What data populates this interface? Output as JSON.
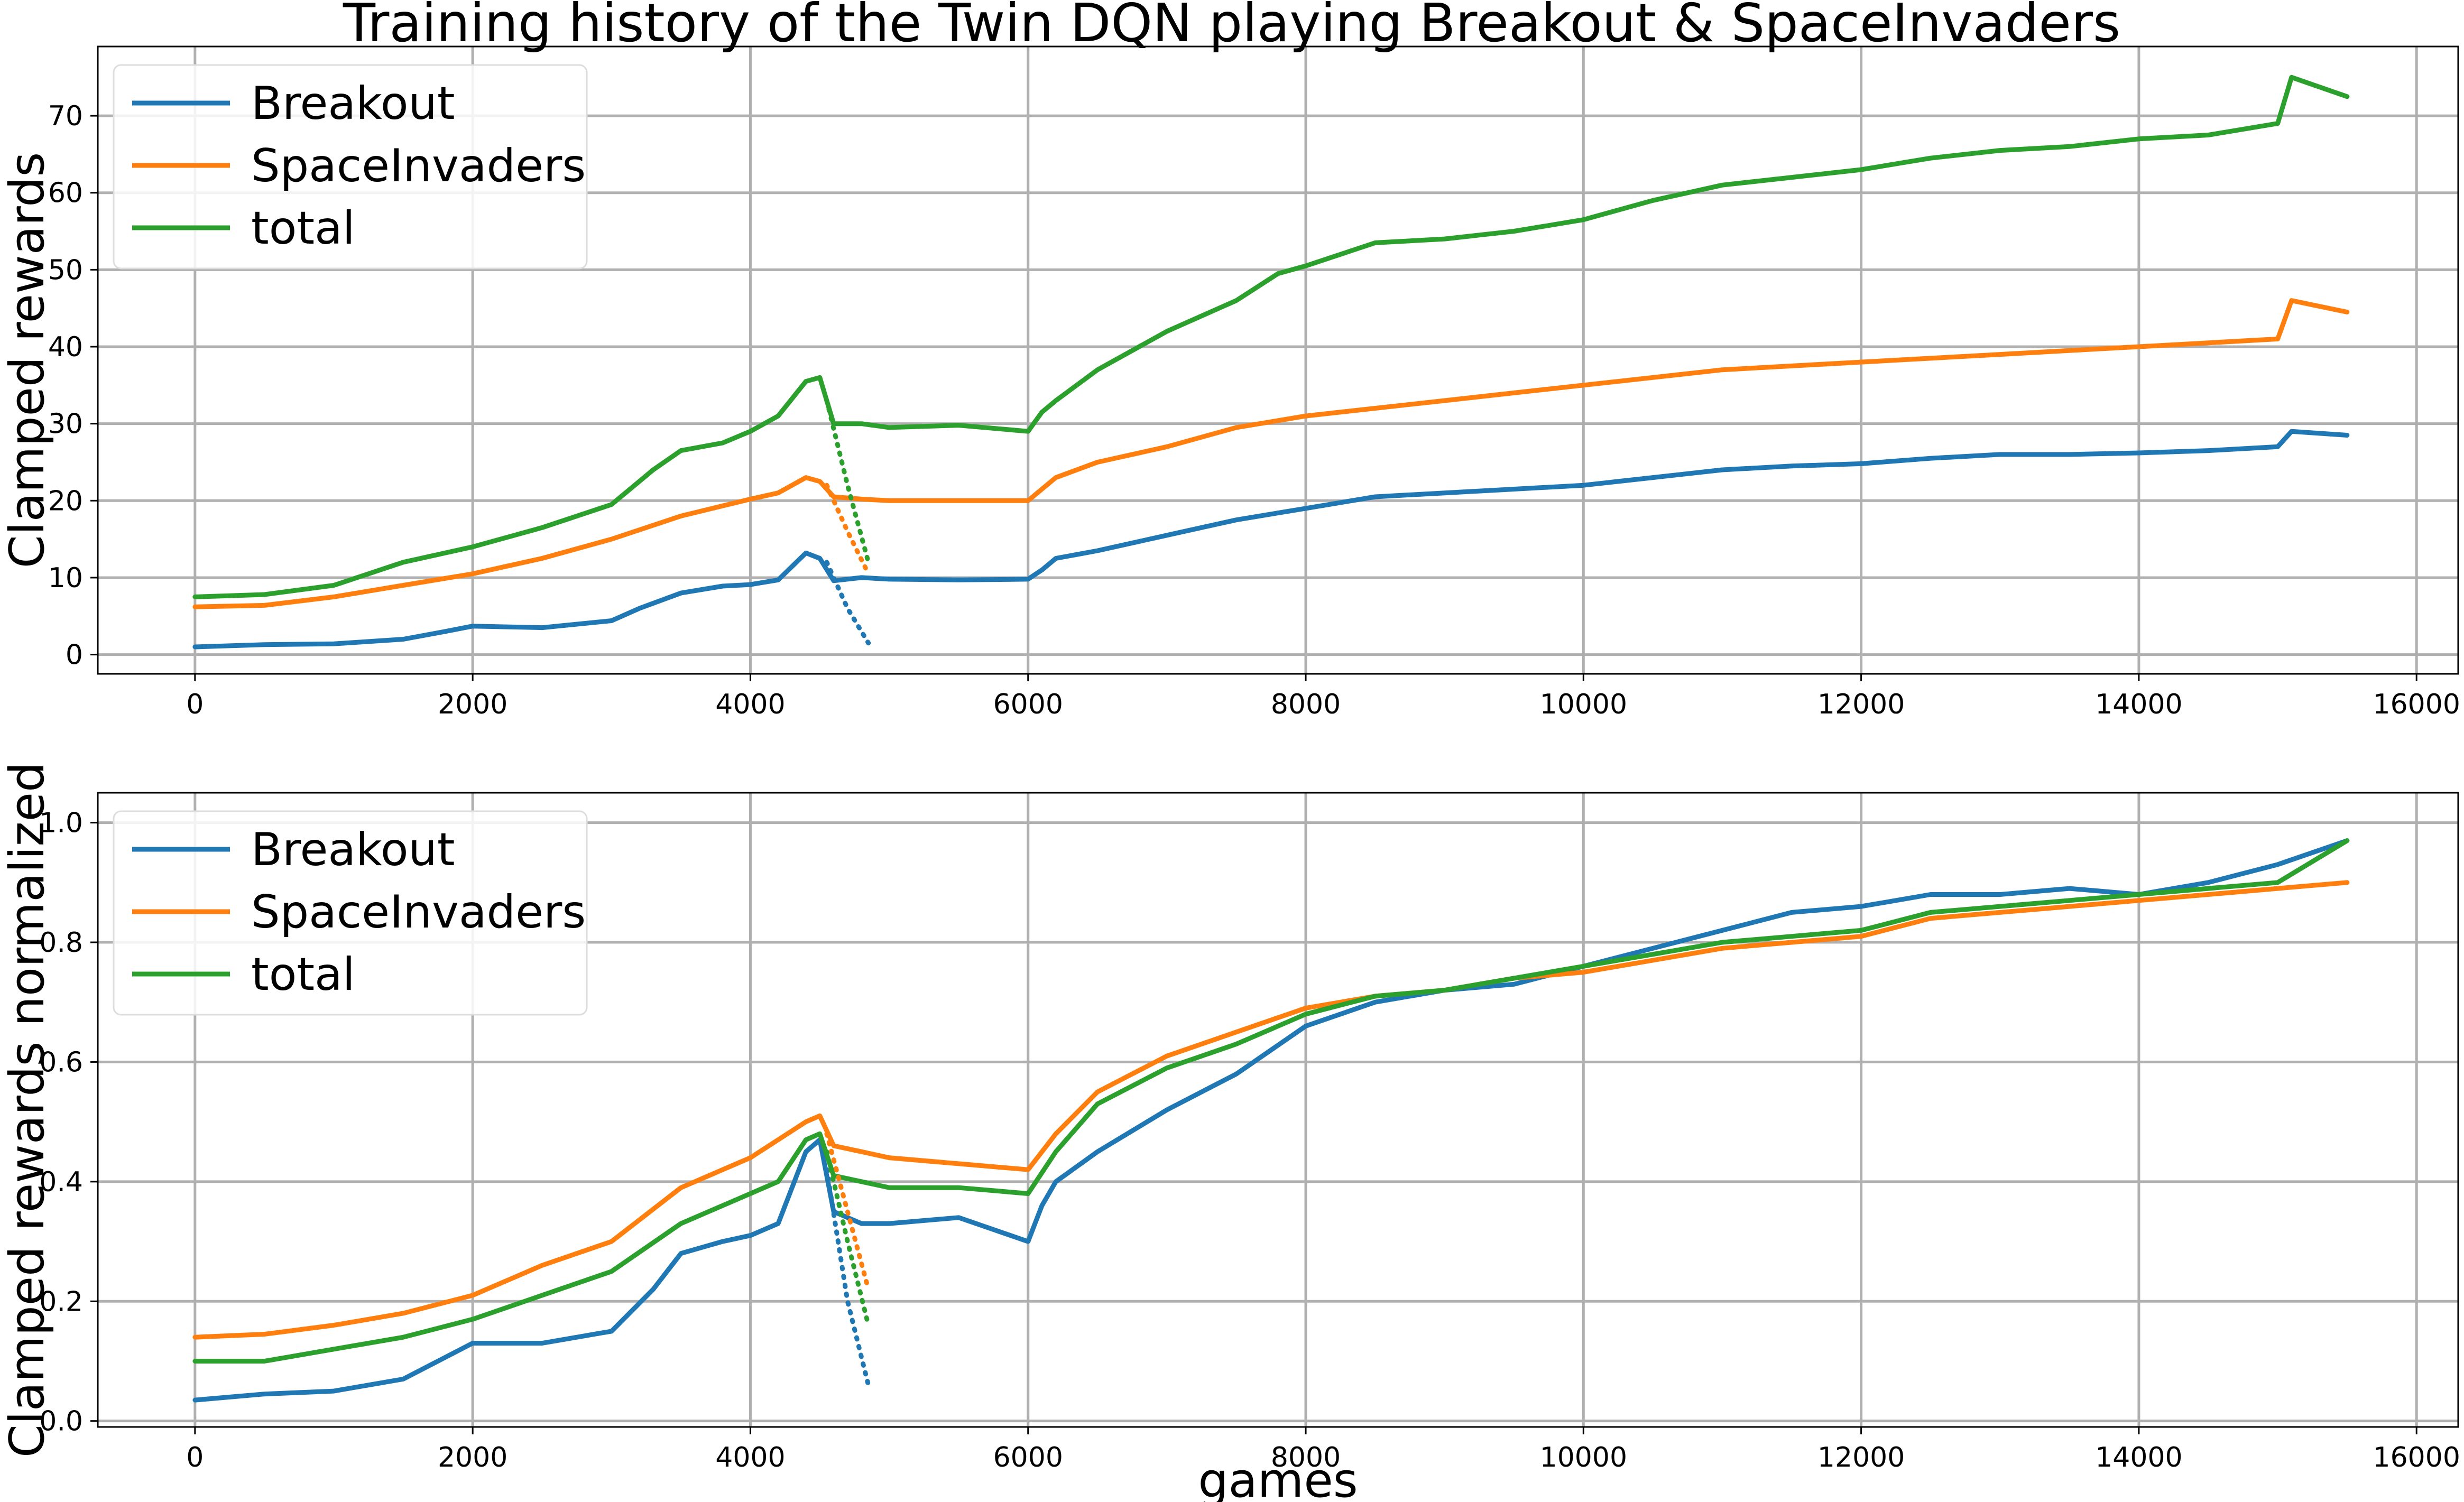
{
  "figure": {
    "title": "Training history of the Twin DQN playing Breakout & SpaceInvaders"
  },
  "colors": {
    "Breakout": "#1f77b4",
    "SpaceInvaders": "#ff7f0e",
    "total": "#2ca02c",
    "grid": "#b0b0b0",
    "axes": "#000000"
  },
  "chart_data": [
    {
      "type": "line",
      "title": "",
      "xlabel": "",
      "ylabel": "Clamped rewards",
      "xlim": [
        -700,
        16300
      ],
      "ylim": [
        -2.5,
        79
      ],
      "xticks": [
        0,
        2000,
        4000,
        6000,
        8000,
        10000,
        12000,
        14000,
        16000
      ],
      "yticks": [
        0,
        10,
        20,
        30,
        40,
        50,
        60,
        70
      ],
      "grid": true,
      "legend": {
        "position": "top-left",
        "entries": [
          "Breakout",
          "SpaceInvaders",
          "total"
        ]
      },
      "series": [
        {
          "name": "Breakout",
          "x": [
            0,
            500,
            1000,
            1500,
            1800,
            2000,
            2500,
            3000,
            3200,
            3500,
            3800,
            4000,
            4200,
            4400,
            4500,
            4600,
            4800,
            5000,
            5500,
            6000,
            6100,
            6200,
            6500,
            7000,
            7500,
            8000,
            8500,
            9000,
            9500,
            10000,
            10500,
            11000,
            11500,
            12000,
            12500,
            13000,
            13500,
            14000,
            14500,
            15000,
            15100,
            15500
          ],
          "values": [
            1.0,
            1.3,
            1.4,
            2.0,
            3.0,
            3.7,
            3.5,
            4.4,
            6.0,
            8.0,
            8.9,
            9.1,
            9.7,
            13.2,
            12.5,
            9.6,
            10.0,
            9.8,
            9.7,
            9.8,
            11.0,
            12.5,
            13.5,
            15.5,
            17.5,
            19.0,
            20.5,
            21.0,
            21.5,
            22.0,
            23.0,
            24.0,
            24.5,
            24.8,
            25.5,
            26.0,
            26.0,
            26.2,
            26.5,
            27.0,
            29.0,
            28.5
          ]
        },
        {
          "name": "SpaceInvaders",
          "x": [
            0,
            500,
            1000,
            1500,
            2000,
            2500,
            3000,
            3500,
            4000,
            4200,
            4400,
            4500,
            4600,
            4800,
            5000,
            5500,
            6000,
            6200,
            6500,
            7000,
            7500,
            8000,
            8500,
            9000,
            9500,
            10000,
            10500,
            11000,
            11500,
            12000,
            12500,
            13000,
            13500,
            14000,
            14500,
            15000,
            15100,
            15500
          ],
          "values": [
            6.2,
            6.4,
            7.5,
            9.0,
            10.5,
            12.5,
            15.0,
            18.0,
            20.2,
            21.0,
            23.0,
            22.5,
            20.5,
            20.2,
            20.0,
            20.0,
            20.0,
            23.0,
            25.0,
            27.0,
            29.5,
            31.0,
            32.0,
            33.0,
            34.0,
            35.0,
            36.0,
            37.0,
            37.5,
            38.0,
            38.5,
            39.0,
            39.5,
            40.0,
            40.5,
            41.0,
            46.0,
            44.5
          ]
        },
        {
          "name": "total",
          "x": [
            0,
            500,
            1000,
            1500,
            2000,
            2500,
            3000,
            3300,
            3500,
            3800,
            4000,
            4200,
            4400,
            4500,
            4600,
            4800,
            5000,
            5500,
            6000,
            6100,
            6200,
            6500,
            7000,
            7500,
            7800,
            8000,
            8500,
            9000,
            9500,
            10000,
            10500,
            11000,
            11500,
            12000,
            12500,
            13000,
            13500,
            14000,
            14500,
            15000,
            15100,
            15500
          ],
          "values": [
            7.5,
            7.8,
            9.0,
            12.0,
            14.0,
            16.5,
            19.5,
            24.0,
            26.5,
            27.5,
            29.0,
            31.0,
            35.5,
            36.0,
            30.0,
            30.0,
            29.5,
            29.8,
            29.0,
            31.5,
            33.0,
            37.0,
            42.0,
            46.0,
            49.5,
            50.5,
            53.5,
            54.0,
            55.0,
            56.5,
            59.0,
            61.0,
            62.0,
            63.0,
            64.5,
            65.5,
            66.0,
            67.0,
            67.5,
            69.0,
            75.0,
            72.5
          ]
        }
      ],
      "dotted_series": [
        {
          "name": "Breakout",
          "x": [
            4550,
            4700,
            4850
          ],
          "values": [
            12.0,
            6.0,
            1.5
          ]
        },
        {
          "name": "SpaceInvaders",
          "x": [
            4550,
            4700,
            4850
          ],
          "values": [
            22.0,
            16.0,
            10.5
          ]
        },
        {
          "name": "total",
          "x": [
            4550,
            4700,
            4850
          ],
          "values": [
            33.0,
            22.0,
            12.0
          ]
        }
      ]
    },
    {
      "type": "line",
      "title": "",
      "xlabel": "games",
      "ylabel": "Clamped rewards normalized",
      "xlim": [
        -700,
        16300
      ],
      "ylim": [
        -0.01,
        1.05
      ],
      "xticks": [
        0,
        2000,
        4000,
        6000,
        8000,
        10000,
        12000,
        14000,
        16000
      ],
      "yticks": [
        0.0,
        0.2,
        0.4,
        0.6,
        0.8,
        1.0
      ],
      "grid": true,
      "legend": {
        "position": "top-left",
        "entries": [
          "Breakout",
          "SpaceInvaders",
          "total"
        ]
      },
      "series": [
        {
          "name": "Breakout",
          "x": [
            0,
            500,
            1000,
            1500,
            2000,
            2500,
            3000,
            3300,
            3500,
            3800,
            4000,
            4200,
            4400,
            4500,
            4600,
            4800,
            5000,
            5500,
            6000,
            6100,
            6200,
            6500,
            7000,
            7500,
            8000,
            8500,
            9000,
            9500,
            10000,
            10500,
            11000,
            11500,
            12000,
            12500,
            13000,
            13500,
            14000,
            14500,
            15000,
            15500
          ],
          "values": [
            0.035,
            0.045,
            0.05,
            0.07,
            0.13,
            0.13,
            0.15,
            0.22,
            0.28,
            0.3,
            0.31,
            0.33,
            0.45,
            0.47,
            0.35,
            0.33,
            0.33,
            0.34,
            0.3,
            0.36,
            0.4,
            0.45,
            0.52,
            0.58,
            0.66,
            0.7,
            0.72,
            0.73,
            0.76,
            0.79,
            0.82,
            0.85,
            0.86,
            0.88,
            0.88,
            0.89,
            0.88,
            0.9,
            0.93,
            0.97
          ]
        },
        {
          "name": "SpaceInvaders",
          "x": [
            0,
            500,
            1000,
            1500,
            2000,
            2500,
            3000,
            3500,
            4000,
            4200,
            4400,
            4500,
            4600,
            4800,
            5000,
            5500,
            6000,
            6200,
            6500,
            7000,
            7500,
            8000,
            8500,
            9000,
            9500,
            10000,
            10500,
            11000,
            11500,
            12000,
            12500,
            13000,
            13500,
            14000,
            14500,
            15000,
            15500
          ],
          "values": [
            0.14,
            0.145,
            0.16,
            0.18,
            0.21,
            0.26,
            0.3,
            0.39,
            0.44,
            0.47,
            0.5,
            0.51,
            0.46,
            0.45,
            0.44,
            0.43,
            0.42,
            0.48,
            0.55,
            0.61,
            0.65,
            0.69,
            0.71,
            0.72,
            0.74,
            0.75,
            0.77,
            0.79,
            0.8,
            0.81,
            0.84,
            0.85,
            0.86,
            0.87,
            0.88,
            0.89,
            0.9
          ]
        },
        {
          "name": "total",
          "x": [
            0,
            500,
            1000,
            1500,
            2000,
            2500,
            3000,
            3500,
            4000,
            4200,
            4400,
            4500,
            4600,
            4800,
            5000,
            5500,
            6000,
            6200,
            6500,
            7000,
            7500,
            8000,
            8500,
            9000,
            9500,
            10000,
            10500,
            11000,
            11500,
            12000,
            12500,
            13000,
            13500,
            14000,
            14500,
            15000,
            15500
          ],
          "values": [
            0.1,
            0.1,
            0.12,
            0.14,
            0.17,
            0.21,
            0.25,
            0.33,
            0.38,
            0.4,
            0.47,
            0.48,
            0.41,
            0.4,
            0.39,
            0.39,
            0.38,
            0.45,
            0.53,
            0.59,
            0.63,
            0.68,
            0.71,
            0.72,
            0.74,
            0.76,
            0.78,
            0.8,
            0.81,
            0.82,
            0.85,
            0.86,
            0.87,
            0.88,
            0.89,
            0.9,
            0.97
          ]
        }
      ],
      "dotted_series": [
        {
          "name": "Breakout",
          "x": [
            4550,
            4700,
            4850
          ],
          "values": [
            0.42,
            0.2,
            0.06
          ]
        },
        {
          "name": "SpaceInvaders",
          "x": [
            4550,
            4700,
            4850
          ],
          "values": [
            0.48,
            0.35,
            0.22
          ]
        },
        {
          "name": "total",
          "x": [
            4550,
            4700,
            4850
          ],
          "values": [
            0.45,
            0.3,
            0.16
          ]
        }
      ]
    }
  ]
}
